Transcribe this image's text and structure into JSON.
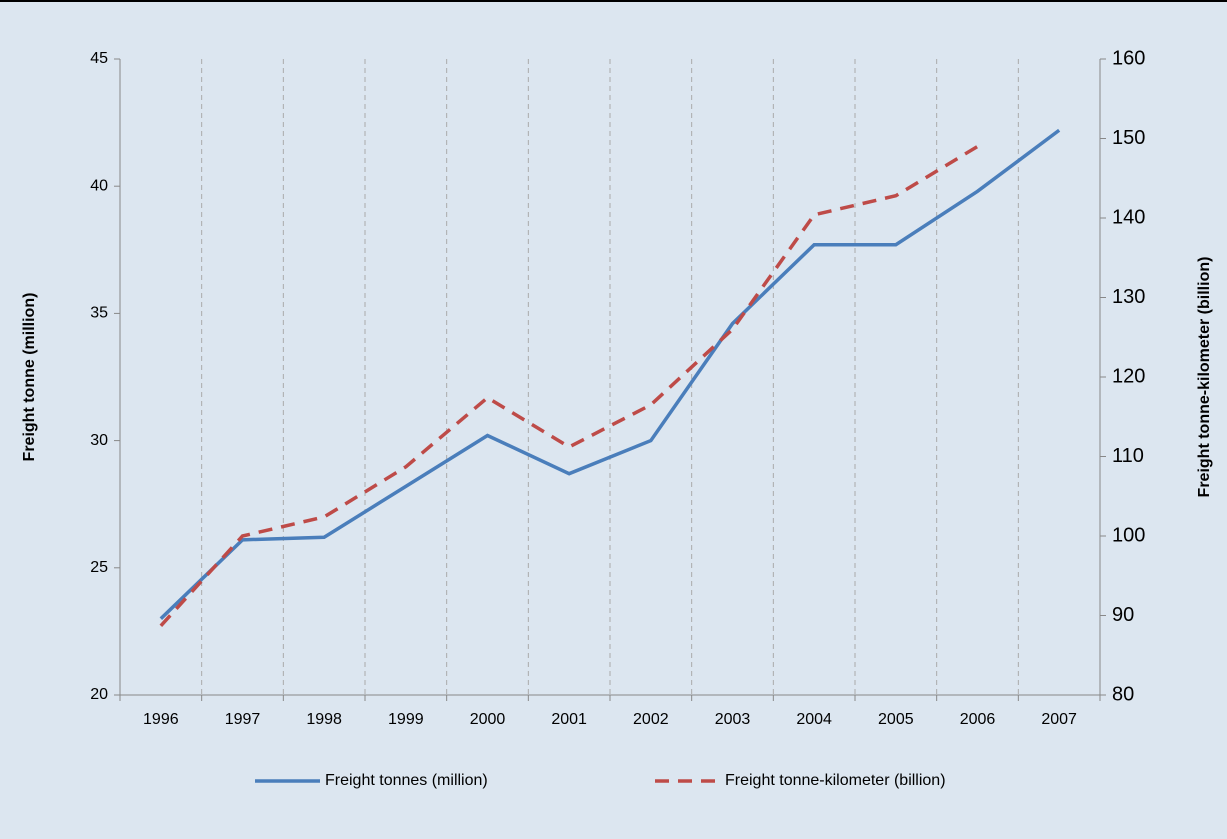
{
  "chart_data": {
    "type": "line",
    "categories": [
      "1996",
      "1997",
      "1998",
      "1999",
      "2000",
      "2001",
      "2002",
      "2003",
      "2004",
      "2005",
      "2006",
      "2007"
    ],
    "series": [
      {
        "name": "Freight tonnes (million)",
        "color": "#4a7ebb",
        "values": [
          23.0,
          26.1,
          26.2,
          28.2,
          30.2,
          28.7,
          30.0,
          34.6,
          37.7,
          37.7,
          39.8,
          42.2
        ]
      },
      {
        "name": "Freight tonne-kilometer (billion)",
        "color": "#be4b48",
        "axis": "y2",
        "dashed": true,
        "values": [
          88.7,
          100.0,
          102.4,
          108.7,
          117.4,
          111.2,
          116.5,
          126.0,
          140.4,
          142.8,
          149.0,
          null
        ]
      }
    ],
    "ylabel": "Freight tonne (million)",
    "y2label": "Freight tonne-kilometer (billion)",
    "ylim": [
      20,
      45
    ],
    "yticks": [
      20,
      25,
      30,
      35,
      40,
      45
    ],
    "y2lim": [
      80,
      160
    ],
    "y2ticks": [
      80,
      90,
      100,
      110,
      120,
      130,
      140,
      150,
      160
    ],
    "grid": "x",
    "legend": "bottom"
  }
}
